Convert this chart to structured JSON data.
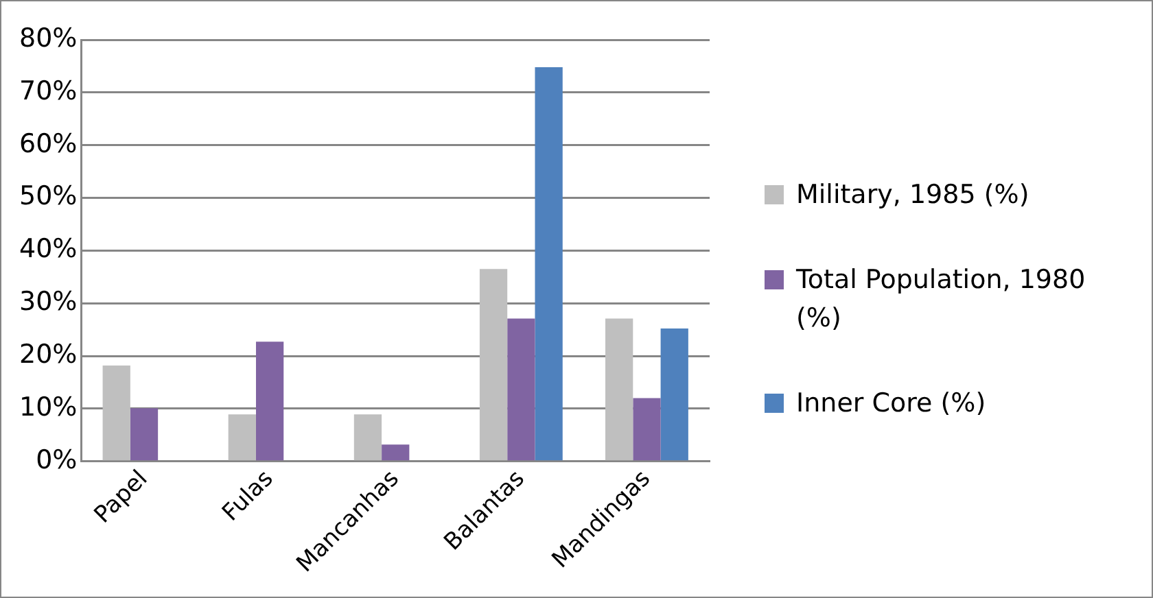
{
  "chart_data": {
    "type": "bar",
    "categories": [
      "Papel",
      "Fulas",
      "Mancanhas",
      "Balantas",
      "Mandingas"
    ],
    "series": [
      {
        "name": "Military, 1985 (%)",
        "color": "#bfbfbf",
        "values": [
          18.2,
          8.9,
          8.9,
          36.5,
          27.1
        ]
      },
      {
        "name": "Total Population, 1980 (%)",
        "color": "#8064a2",
        "values": [
          10.1,
          22.7,
          3.2,
          27.1,
          12.0
        ]
      },
      {
        "name": "Inner Core (%)",
        "color": "#4f81bd",
        "values": [
          null,
          null,
          null,
          74.8,
          25.2
        ]
      }
    ],
    "ylim": [
      0,
      80
    ],
    "yticks": [
      {
        "value": 0,
        "label": "0%"
      },
      {
        "value": 10,
        "label": "10%"
      },
      {
        "value": 20,
        "label": "20%"
      },
      {
        "value": 30,
        "label": "30%"
      },
      {
        "value": 40,
        "label": "40%"
      },
      {
        "value": 50,
        "label": "50%"
      },
      {
        "value": 60,
        "label": "60%"
      },
      {
        "value": 70,
        "label": "70%"
      },
      {
        "value": 80,
        "label": "80%"
      }
    ],
    "grid": "y",
    "legend": "right"
  }
}
